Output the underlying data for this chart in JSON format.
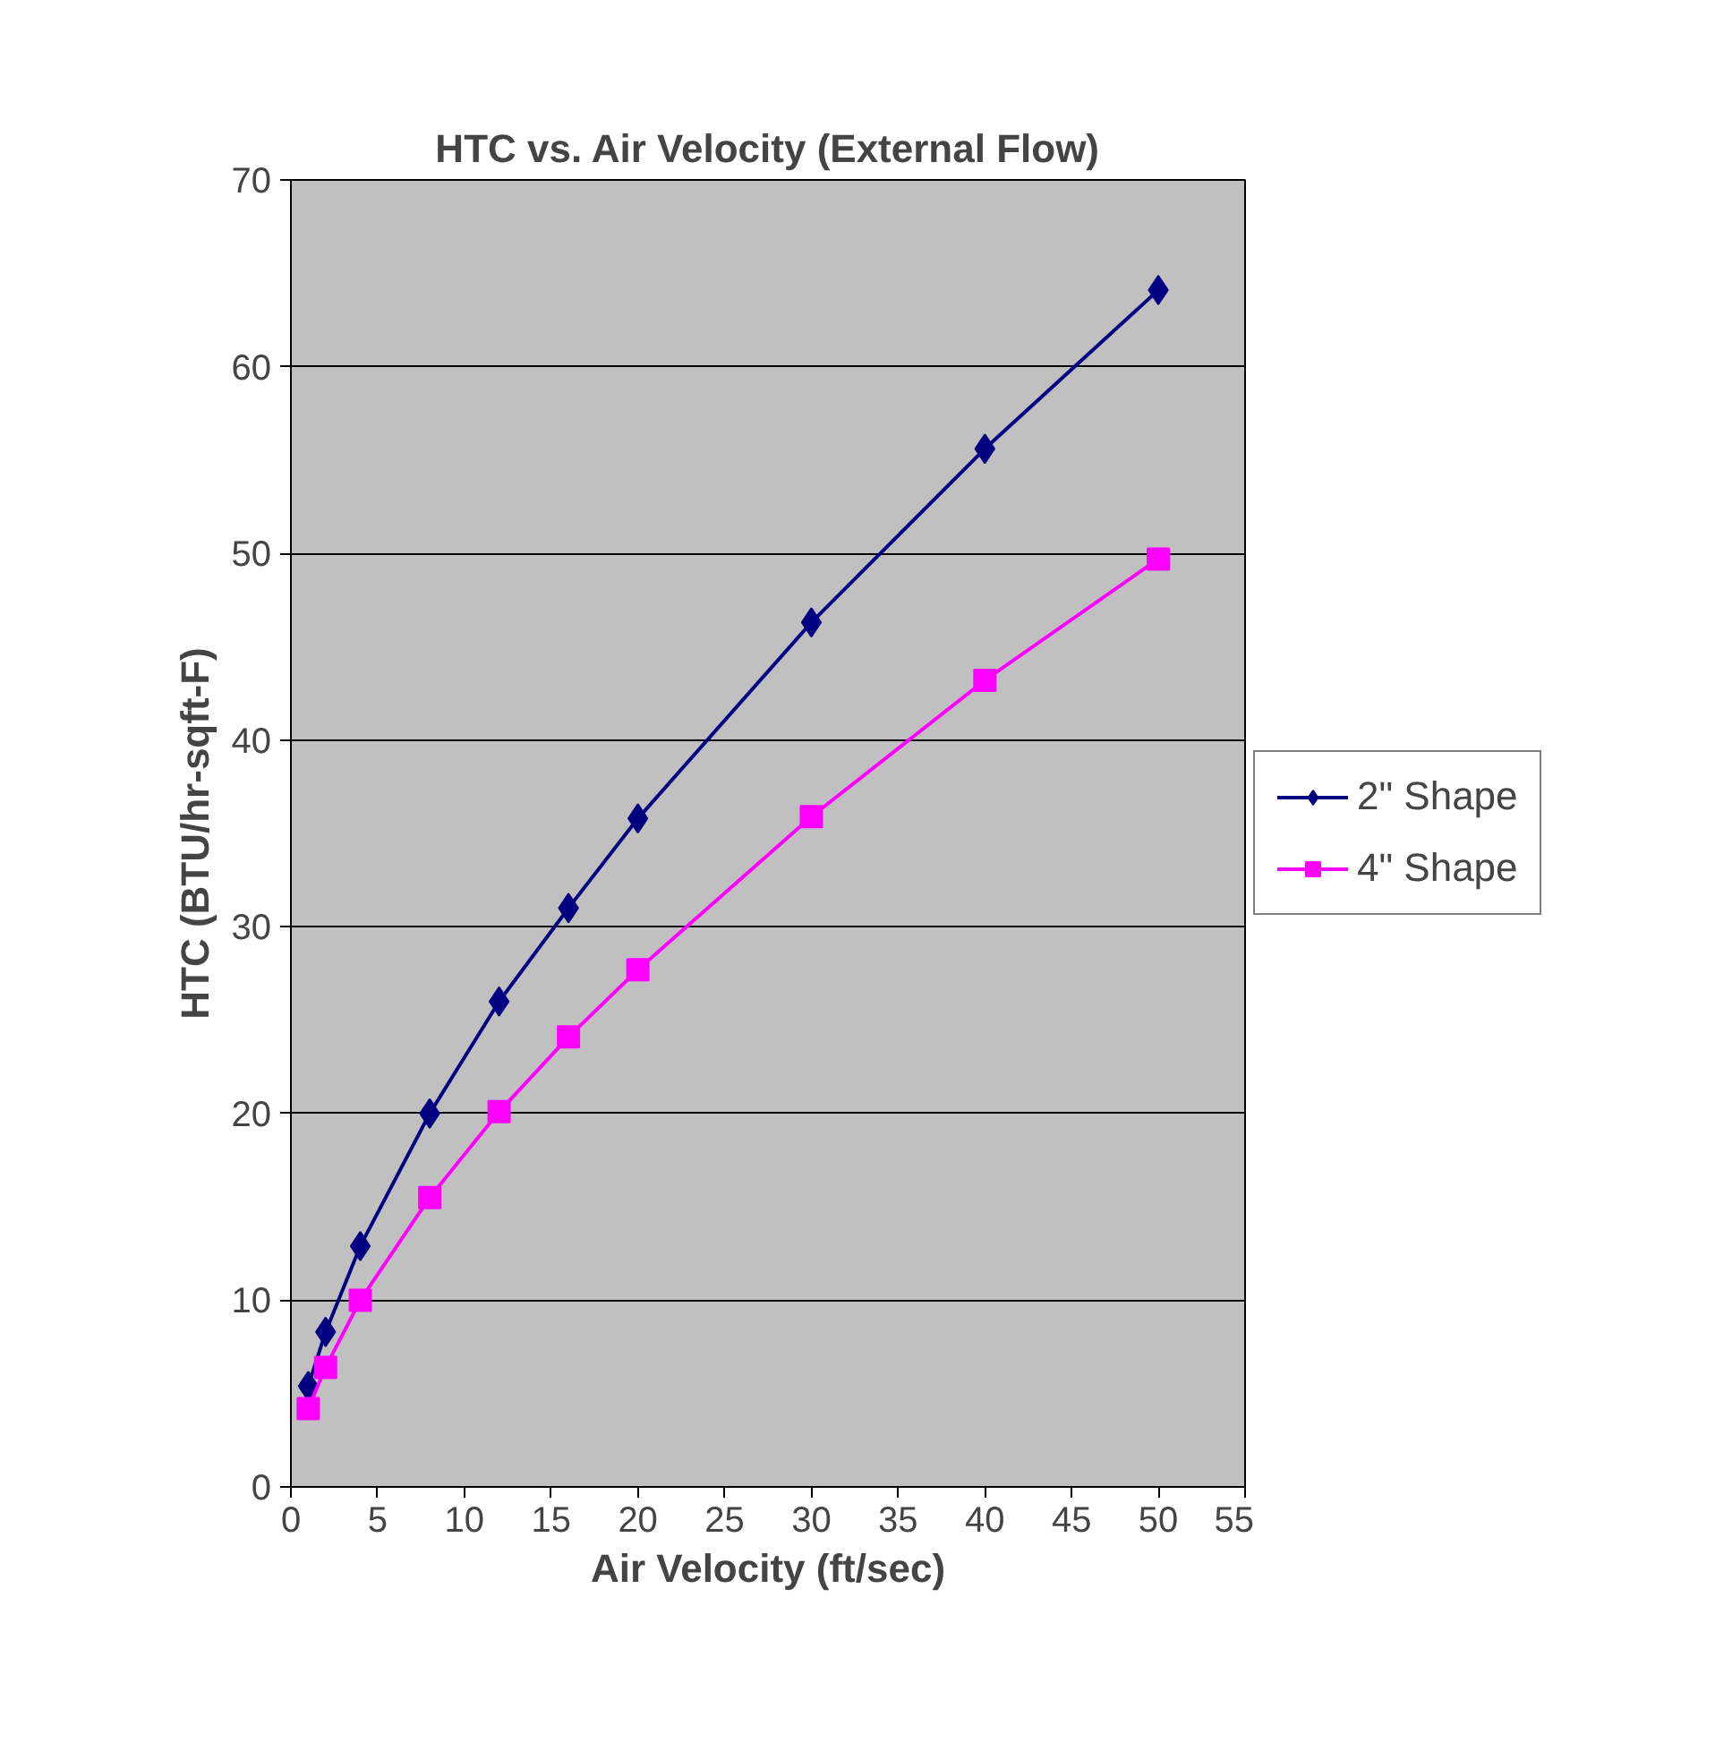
{
  "chart_data": {
    "type": "line",
    "title": "HTC vs. Air Velocity (External Flow)",
    "xlabel": "Air Velocity (ft/sec)",
    "ylabel": "HTC (BTU/hr-sqft-F)",
    "x": [
      1,
      2,
      4,
      8,
      12,
      16,
      20,
      30,
      40,
      50
    ],
    "series": [
      {
        "name": "2\" Shape",
        "color": "#000080",
        "marker": "diamond",
        "values": [
          5.4,
          8.3,
          12.9,
          20.0,
          26.0,
          31.0,
          35.8,
          46.3,
          55.6,
          64.1
        ]
      },
      {
        "name": "4\" Shape",
        "color": "#ff00ff",
        "marker": "square",
        "values": [
          4.2,
          6.4,
          10.0,
          15.5,
          20.1,
          24.1,
          27.7,
          35.9,
          43.2,
          49.7
        ]
      }
    ],
    "xlim": [
      0,
      55
    ],
    "xticks": [
      0,
      5,
      10,
      15,
      20,
      25,
      30,
      35,
      40,
      45,
      50,
      55
    ],
    "ylim": [
      0,
      70
    ],
    "yticks": [
      0,
      10,
      20,
      30,
      40,
      50,
      60,
      70
    ],
    "grid": "y",
    "legend": "right",
    "line_style": "solid"
  }
}
